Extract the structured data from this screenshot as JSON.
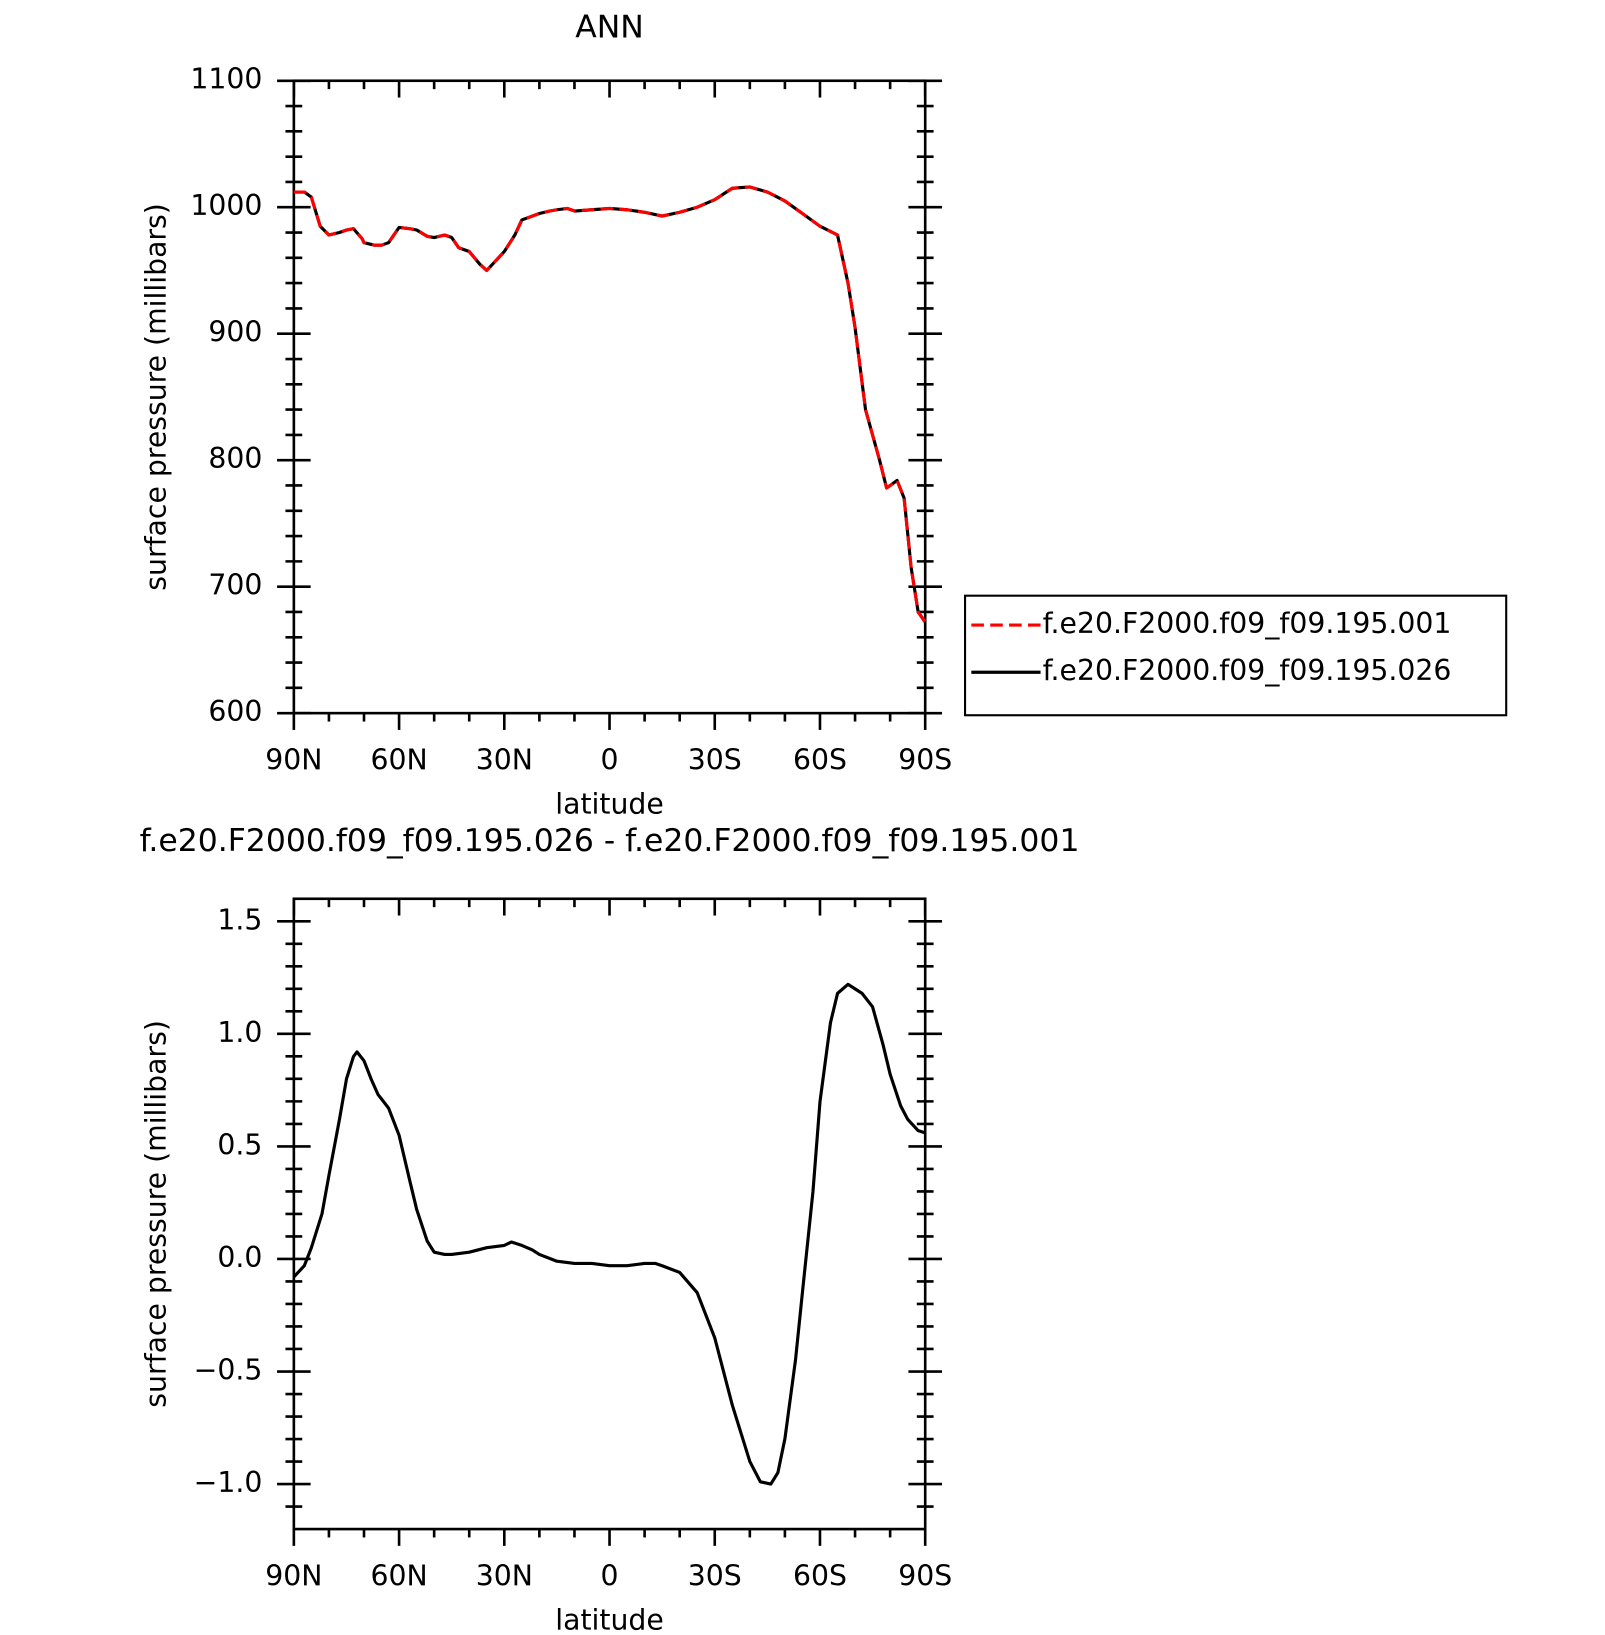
{
  "chart_data": [
    {
      "type": "line",
      "title": "ANN",
      "xlabel": "latitude",
      "ylabel": "surface pressure (millibars)",
      "xlim": [
        90,
        -90
      ],
      "xticks": [
        {
          "value": 90,
          "label": "90N"
        },
        {
          "value": 60,
          "label": "60N"
        },
        {
          "value": 30,
          "label": "30N"
        },
        0,
        {
          "value": -30,
          "label": "30S"
        },
        {
          "value": -60,
          "label": "60S"
        },
        {
          "value": -90,
          "label": "90S"
        }
      ],
      "xminorticks": [
        80,
        70,
        50,
        40,
        20,
        10,
        -10,
        -20,
        -40,
        -50,
        -70,
        -80
      ],
      "ylim": [
        600,
        1100
      ],
      "yticks": [
        600,
        700,
        800,
        900,
        1000,
        1100
      ],
      "yminorticks": [
        620,
        640,
        660,
        680,
        720,
        740,
        760,
        780,
        820,
        840,
        860,
        880,
        920,
        940,
        960,
        980,
        1020,
        1040,
        1060,
        1080
      ],
      "x": [
        90,
        87,
        85,
        82.5,
        80,
        77,
        75,
        73,
        70.5,
        70,
        67,
        65,
        63,
        60,
        57,
        55,
        52,
        50,
        47,
        45,
        43,
        40,
        37,
        35,
        33,
        30,
        27,
        25,
        22,
        20,
        17,
        15,
        12,
        10,
        5,
        0,
        -5,
        -10,
        -15,
        -20,
        -25,
        -30,
        -35,
        -40,
        -45,
        -50,
        -55,
        -60,
        -65,
        -68,
        -70,
        -73,
        -77,
        -79,
        -82,
        -84,
        -86,
        -88,
        -90
      ],
      "series": [
        {
          "name": "f.e20.F2000.f09_f09.195.001",
          "color": "#ff0000",
          "dashed": true,
          "values": [
            1012,
            1012,
            1008,
            985,
            978,
            980,
            982,
            983,
            975,
            972,
            970,
            970,
            972,
            984,
            983,
            982,
            977,
            976,
            978,
            976,
            968,
            965,
            955,
            950,
            956,
            965,
            978,
            990,
            993,
            995,
            997,
            998,
            999,
            997,
            998,
            999,
            998,
            996,
            993,
            996,
            1000,
            1006,
            1015,
            1016,
            1012,
            1005,
            995,
            985,
            978,
            940,
            905,
            840,
            800,
            778,
            784,
            770,
            715,
            680,
            672
          ]
        },
        {
          "name": "f.e20.F2000.f09_f09.195.026",
          "color": "#000000",
          "dashed": false,
          "values": [
            1012,
            1012,
            1008,
            985,
            978,
            980,
            982,
            983,
            975,
            972,
            970,
            970,
            972,
            984,
            983,
            982,
            977,
            976,
            978,
            976,
            968,
            965,
            955,
            950,
            956,
            965,
            978,
            990,
            993,
            995,
            997,
            998,
            999,
            997,
            998,
            999,
            998,
            996,
            993,
            996,
            1000,
            1006,
            1015,
            1016,
            1012,
            1005,
            995,
            985,
            978,
            940,
            905,
            840,
            800,
            778,
            784,
            770,
            715,
            680,
            672
          ]
        }
      ]
    },
    {
      "type": "line",
      "title": "f.e20.F2000.f09_f09.195.026 - f.e20.F2000.f09_f09.195.001",
      "xlabel": "latitude",
      "ylabel": "surface pressure (millibars)",
      "xlim": [
        90,
        -90
      ],
      "xticks": [
        {
          "value": 90,
          "label": "90N"
        },
        {
          "value": 60,
          "label": "60N"
        },
        {
          "value": 30,
          "label": "30N"
        },
        0,
        {
          "value": -30,
          "label": "30S"
        },
        {
          "value": -60,
          "label": "60S"
        },
        {
          "value": -90,
          "label": "90S"
        }
      ],
      "xminorticks": [
        80,
        70,
        50,
        40,
        20,
        10,
        -10,
        -20,
        -40,
        -50,
        -70,
        -80
      ],
      "ylim": [
        -1.2,
        1.6
      ],
      "yticks": [
        {
          "value": -1,
          "label": "−1.0"
        },
        {
          "value": -0.5,
          "label": "−0.5"
        },
        {
          "value": 0,
          "label": "0.0"
        },
        0.5,
        {
          "value": 1,
          "label": "1.0"
        },
        1.5
      ],
      "yminorticks": [
        -1.1,
        -0.9,
        -0.8,
        -0.7,
        -0.6,
        -0.4,
        -0.3,
        -0.2,
        -0.1,
        0.1,
        0.2,
        0.3,
        0.4,
        0.6,
        0.7,
        0.8,
        0.9,
        1.1,
        1.2,
        1.3,
        1.4
      ],
      "x": [
        90,
        87,
        85,
        82,
        80,
        77,
        75,
        73,
        72,
        70,
        68,
        66,
        63,
        60,
        57,
        55,
        52,
        50,
        47,
        45,
        40,
        35,
        30,
        28,
        25,
        22,
        20,
        15,
        10,
        5,
        0,
        -5,
        -10,
        -13,
        -15,
        -20,
        -25,
        -30,
        -35,
        -40,
        -43,
        -46,
        -48,
        -50,
        -53,
        -55,
        -58,
        -60,
        -63,
        -65,
        -68,
        -70,
        -72,
        -75,
        -78,
        -80,
        -83,
        -85,
        -88,
        -90
      ],
      "series": [
        {
          "color": "#000000",
          "dashed": false,
          "values": [
            -0.08,
            -0.03,
            0.05,
            0.2,
            0.37,
            0.62,
            0.8,
            0.9,
            0.92,
            0.88,
            0.8,
            0.73,
            0.67,
            0.55,
            0.35,
            0.22,
            0.08,
            0.03,
            0.02,
            0.02,
            0.03,
            0.05,
            0.06,
            0.075,
            0.06,
            0.04,
            0.02,
            -0.01,
            -0.02,
            -0.02,
            -0.03,
            -0.03,
            -0.02,
            -0.02,
            -0.03,
            -0.06,
            -0.15,
            -0.35,
            -0.65,
            -0.9,
            -0.99,
            -1,
            -0.95,
            -0.8,
            -0.45,
            -0.15,
            0.3,
            0.7,
            1.05,
            1.18,
            1.22,
            1.2,
            1.18,
            1.12,
            0.95,
            0.82,
            0.68,
            0.62,
            0.57,
            0.56
          ]
        }
      ]
    }
  ]
}
